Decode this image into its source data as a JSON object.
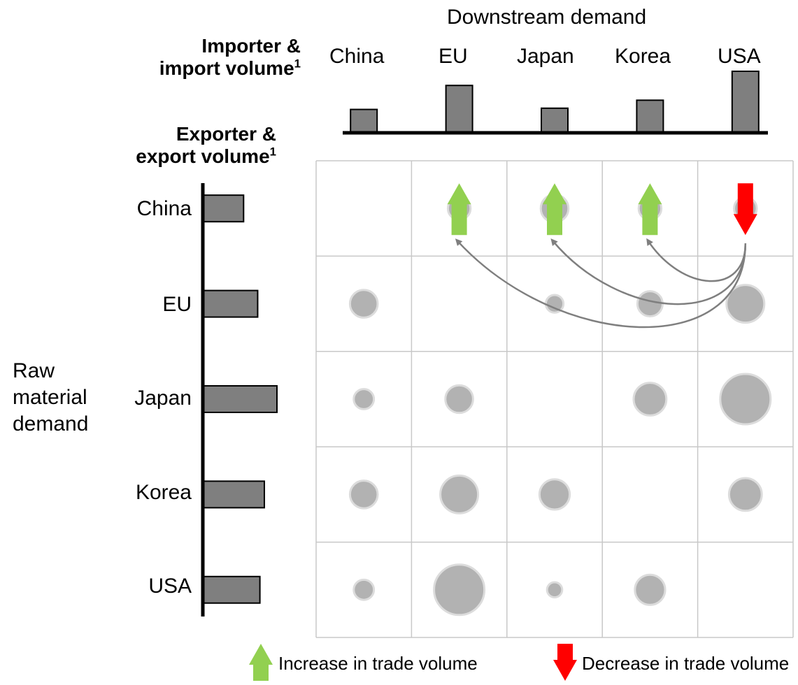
{
  "top_title": "Downstream demand",
  "left_title": "Raw material demand",
  "importer_header": {
    "line1": "Importer &",
    "line2": "import volume",
    "sup": "1"
  },
  "exporter_header": {
    "line1": "Exporter &",
    "line2": "export volume",
    "sup": "1"
  },
  "importers": [
    {
      "name": "China",
      "volume": 0.38
    },
    {
      "name": "EU",
      "volume": 0.77
    },
    {
      "name": "Japan",
      "volume": 0.4
    },
    {
      "name": "Korea",
      "volume": 0.53
    },
    {
      "name": "USA",
      "volume": 1.0
    }
  ],
  "exporters": [
    {
      "name": "China",
      "volume": 0.55
    },
    {
      "name": "EU",
      "volume": 0.74
    },
    {
      "name": "Japan",
      "volume": 1.0
    },
    {
      "name": "Korea",
      "volume": 0.83
    },
    {
      "name": "USA",
      "volume": 0.77
    }
  ],
  "trade_flows": [
    [
      null,
      0.45,
      0.55,
      0.45,
      0.45
    ],
    [
      0.55,
      null,
      0.35,
      0.5,
      0.75
    ],
    [
      0.4,
      0.55,
      null,
      0.65,
      1.0
    ],
    [
      0.55,
      0.75,
      0.6,
      null,
      0.65
    ],
    [
      0.4,
      1.0,
      0.3,
      0.6,
      null
    ]
  ],
  "trade_changes": [
    {
      "exporter": "China",
      "importer": "EU",
      "direction": "increase"
    },
    {
      "exporter": "China",
      "importer": "Japan",
      "direction": "increase"
    },
    {
      "exporter": "China",
      "importer": "Korea",
      "direction": "increase"
    },
    {
      "exporter": "China",
      "importer": "USA",
      "direction": "decrease"
    }
  ],
  "colors": {
    "bar": "#7f7f7f",
    "bubble": "#b2b2b2",
    "bubble_ring": "#dcdcdc",
    "grid": "#c8c8c8",
    "increase": "#92d050",
    "decrease": "#ff0000",
    "connector": "#7f7f7f"
  },
  "legend": {
    "increase_label": "Increase in trade volume",
    "decrease_label": "Decrease in trade volume"
  }
}
